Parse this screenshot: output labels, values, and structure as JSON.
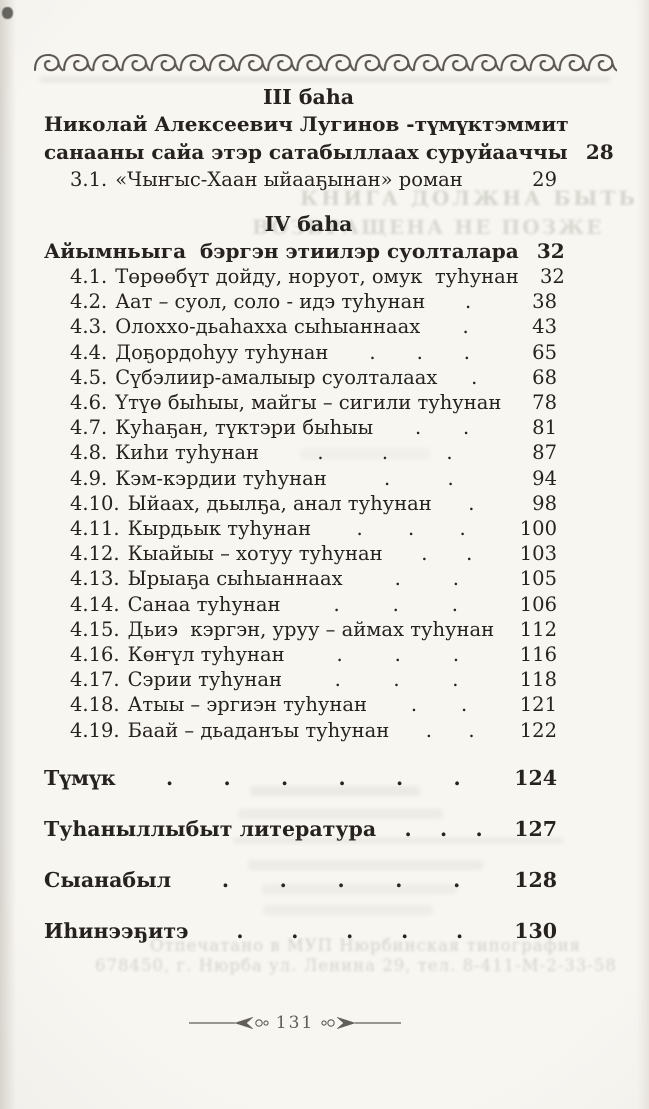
{
  "section3": {
    "heading": "III баһа",
    "title_line1": "Николай Алексеевич Лугинов -түмүктэммит",
    "title_line2": "санааны сайа этэр сатабыллаах суруйааччы",
    "title_page": "28",
    "entries": [
      {
        "label": "3.1.",
        "title": "«Чыҥыс-Хаан ыйааҕынан» роман",
        "dots": "",
        "page": "29"
      }
    ]
  },
  "section4": {
    "heading": "IV баһа",
    "title": "Айымньыга  бэргэн этиилэр суолталара",
    "title_dots": ".",
    "title_page": "32",
    "entries": [
      {
        "label": "4.1.",
        "title": "Төрөөбүт дойду, норуот, омук  туһунан",
        "dots": "",
        "page": "32"
      },
      {
        "label": "4.2.",
        "title": "Аат – суол, соло - идэ туһунан",
        "dots": ".",
        "page": "38"
      },
      {
        "label": "4.3.",
        "title": "Олоххо-дьаһахха сыһыаннаах",
        "dots": ".",
        "page": "43"
      },
      {
        "label": "4.4.",
        "title": "Доҕордоһуу туһунан",
        "dots": ". . .",
        "page": "65"
      },
      {
        "label": "4.5.",
        "title": "Сүбэлиир-амалыыр суолталаах",
        "dots": ".",
        "page": "68"
      },
      {
        "label": "4.6.",
        "title": "Үтүө быһыы, майгы – сигили туһунан",
        "dots": "",
        "page": "78"
      },
      {
        "label": "4.7.",
        "title": "Куһаҕан, түктэри быһыы",
        "dots": ". .",
        "page": "81"
      },
      {
        "label": "4.8.",
        "title": "Киһи туһунан",
        "dots": ". . .",
        "page": "87"
      },
      {
        "label": "4.9.",
        "title": "Кэм-кэрдии туһунан",
        "dots": ". .",
        "page": "94"
      },
      {
        "label": "4.10.",
        "title": "Ыйаах, дьылҕа, анал туһунан",
        "dots": ".",
        "page": "98"
      },
      {
        "label": "4.11.",
        "title": "Кырдьык туһунан",
        "dots": ". . .",
        "page": "100"
      },
      {
        "label": "4.12.",
        "title": "Кыайыы – хотуу туһунан",
        "dots": ". .",
        "page": "103"
      },
      {
        "label": "4.13.",
        "title": "Ырыаҕа сыһыаннаах",
        "dots": ". .",
        "page": "105"
      },
      {
        "label": "4.14.",
        "title": "Санаа туһунан",
        "dots": ". . .",
        "page": "106"
      },
      {
        "label": "4.15.",
        "title": "Дьиэ  кэргэн, уруу – аймах туһунан",
        "dots": "",
        "page": "112"
      },
      {
        "label": "4.16.",
        "title": "Көҥүл туһунан",
        "dots": ". . .",
        "page": "116"
      },
      {
        "label": "4.17.",
        "title": "Сэрии туһунан",
        "dots": ". . .",
        "page": "118"
      },
      {
        "label": "4.18.",
        "title": "Атыы – эргиэн туһунан",
        "dots": ". .",
        "page": "121"
      },
      {
        "label": "4.19.",
        "title": "Баай – дьаданъы туһунан",
        "dots": ". .",
        "page": "122"
      }
    ]
  },
  "closing": {
    "items": [
      {
        "title": "Түмүк",
        "dots": ". . . . . .",
        "page": "124"
      },
      {
        "title": "Туһаныллыбыт литература",
        "dots": ". . .",
        "page": "127"
      },
      {
        "title": "Сыанабыл",
        "dots": ". . . . .",
        "page": "128"
      },
      {
        "title": "Иһинээҕитэ",
        "dots": ". . . . .",
        "page": "130"
      }
    ]
  },
  "footer": {
    "page_number": "131"
  },
  "bleedthrough": {
    "stamp_line1": "КНИГА ДОЛЖНА БЫТЬ",
    "stamp_line2": "ВОЗВРАЩЕНА НЕ ПОЗЖЕ",
    "print_line1": "Отпечатано в МУП Нюрбинская типография",
    "print_line2": "678450, г. Нюрба ул. Ленина 29, тел. 8-411-М-2-33-58"
  },
  "colors": {
    "ink": "#262220",
    "paper": "#f8f6f1",
    "ornament": "#45403a",
    "bleed": "#8d9587"
  }
}
